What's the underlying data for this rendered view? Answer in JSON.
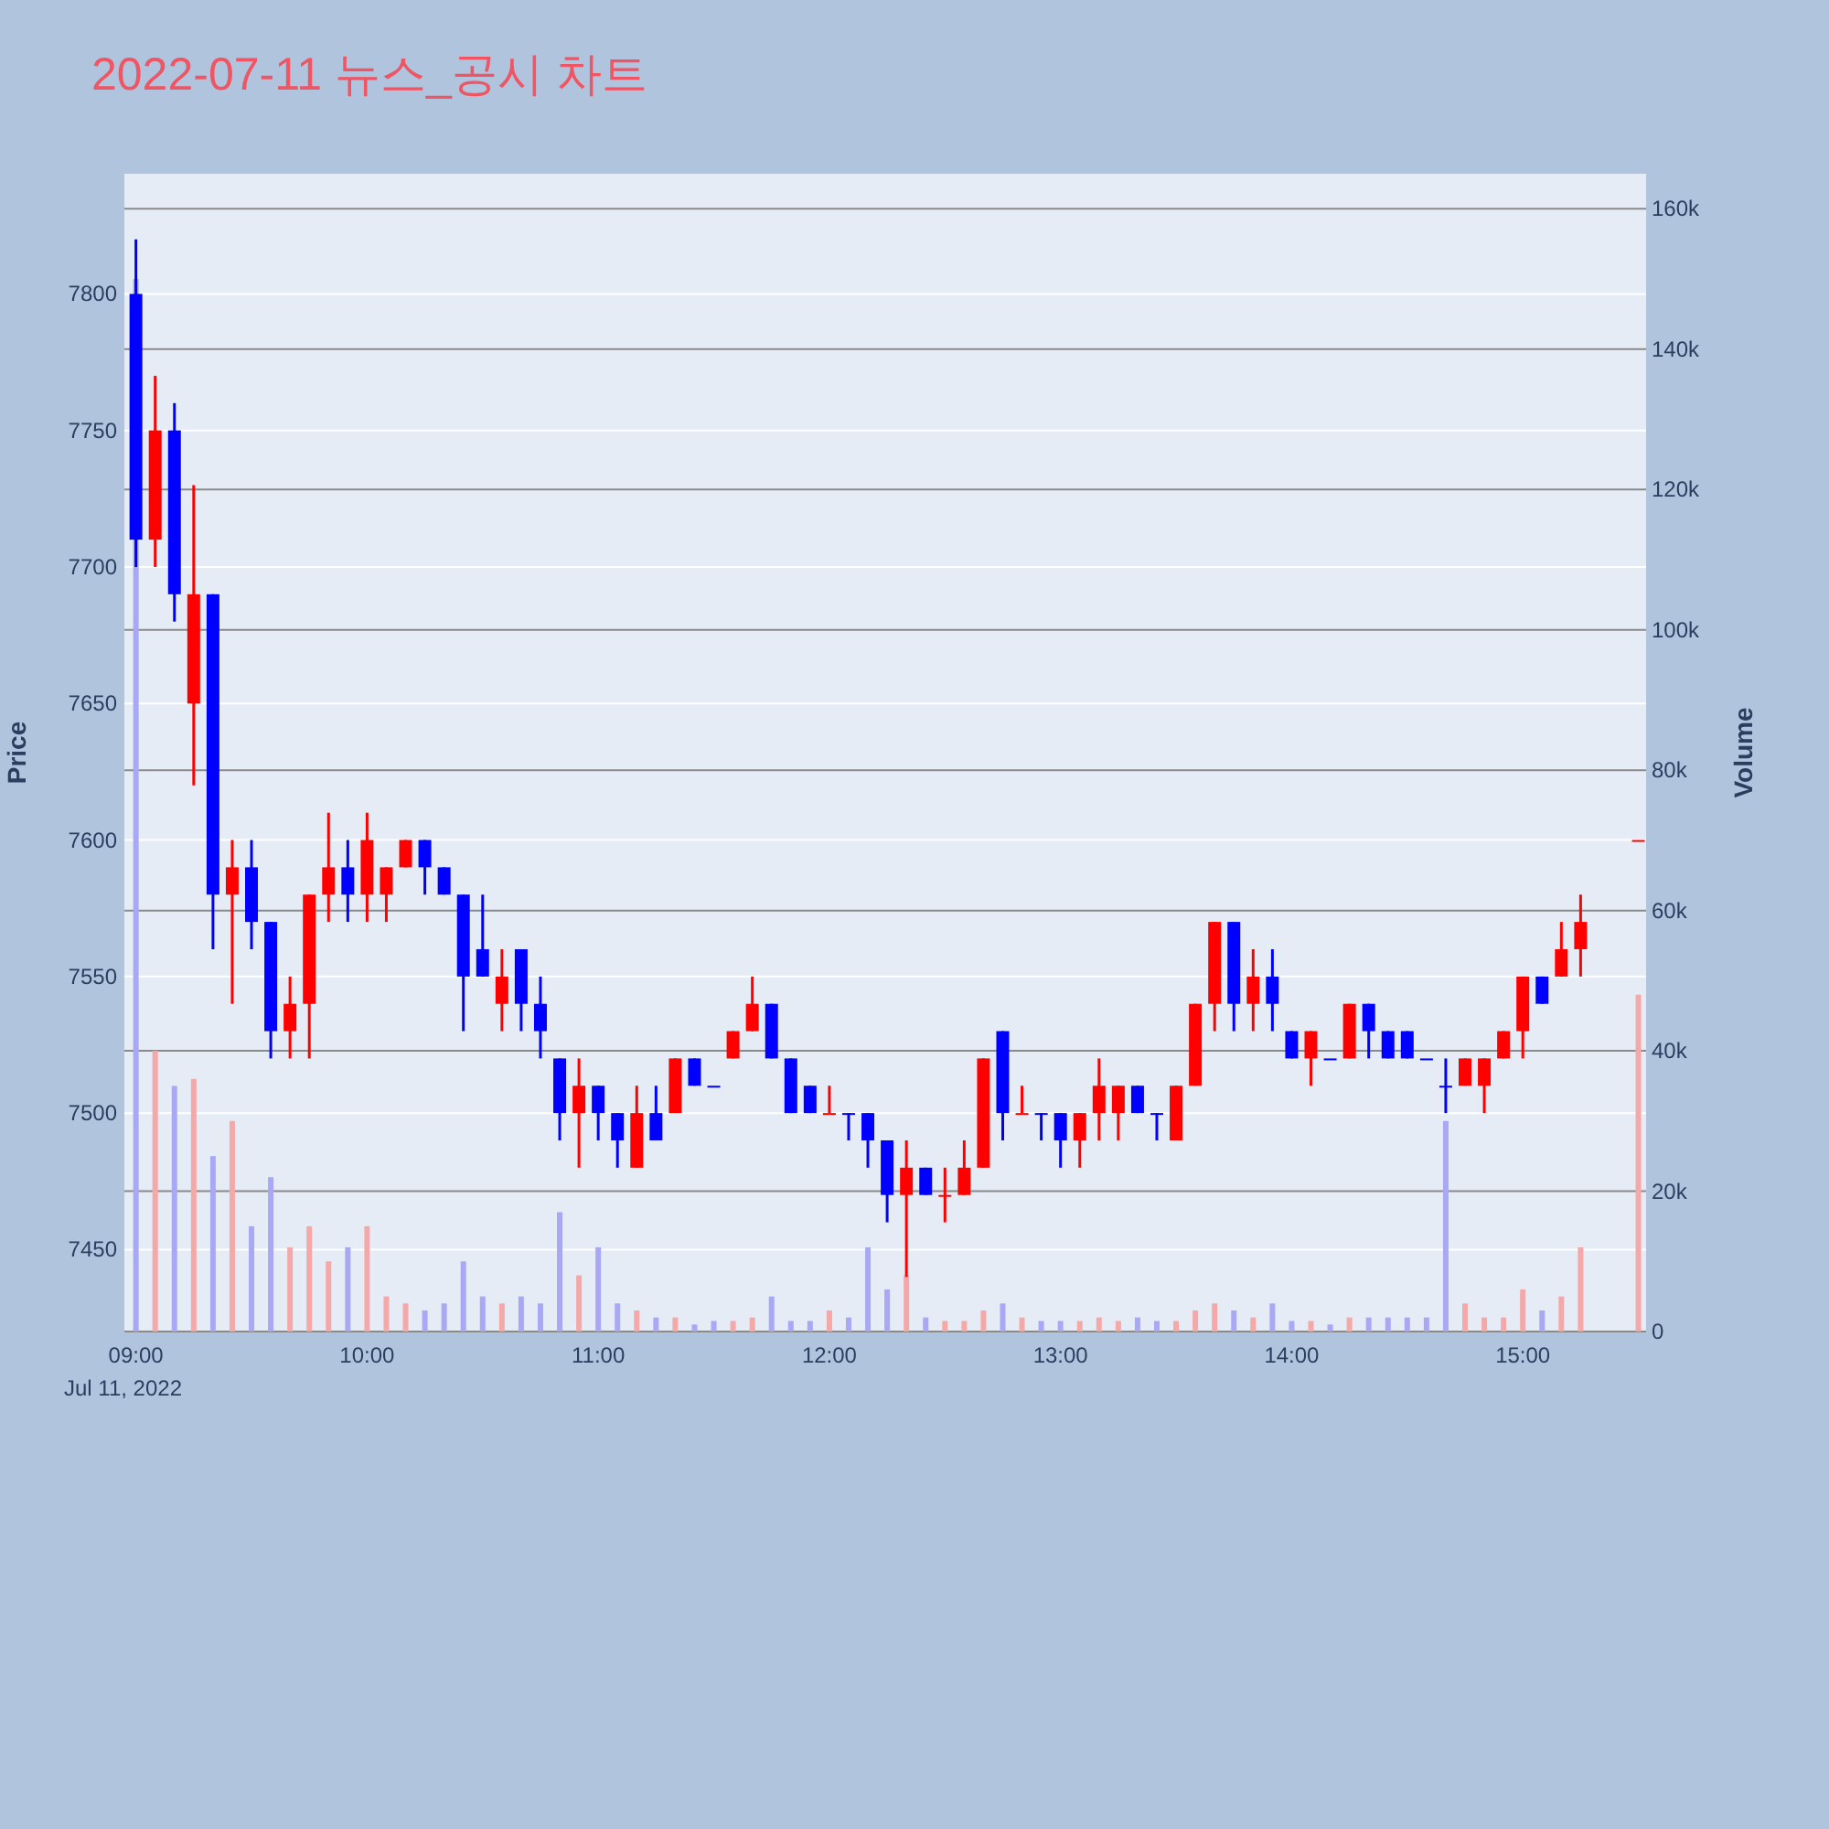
{
  "chart_data": {
    "type": "candlestick",
    "title": "2022-07-11 뉴스_공시 차트",
    "ylabel": "Price",
    "y2label": "Volume",
    "annotations": [
      "Jul 11, 2022"
    ],
    "x": [
      "2022-07-11T09:00",
      "2022-07-11T09:05",
      "2022-07-11T09:10",
      "2022-07-11T09:15",
      "2022-07-11T09:20",
      "2022-07-11T09:25",
      "2022-07-11T09:30",
      "2022-07-11T09:35",
      "2022-07-11T09:40",
      "2022-07-11T09:45",
      "2022-07-11T09:50",
      "2022-07-11T09:55",
      "2022-07-11T10:00",
      "2022-07-11T10:05",
      "2022-07-11T10:10",
      "2022-07-11T10:15",
      "2022-07-11T10:20",
      "2022-07-11T10:25",
      "2022-07-11T10:30",
      "2022-07-11T10:35",
      "2022-07-11T10:40",
      "2022-07-11T10:45",
      "2022-07-11T10:50",
      "2022-07-11T10:55",
      "2022-07-11T11:00",
      "2022-07-11T11:05",
      "2022-07-11T11:10",
      "2022-07-11T11:15",
      "2022-07-11T11:20",
      "2022-07-11T11:25",
      "2022-07-11T11:30",
      "2022-07-11T11:35",
      "2022-07-11T11:40",
      "2022-07-11T11:45",
      "2022-07-11T11:50",
      "2022-07-11T11:55",
      "2022-07-11T12:00",
      "2022-07-11T12:05",
      "2022-07-11T12:10",
      "2022-07-11T12:15",
      "2022-07-11T12:20",
      "2022-07-11T12:25",
      "2022-07-11T12:30",
      "2022-07-11T12:35",
      "2022-07-11T12:40",
      "2022-07-11T12:45",
      "2022-07-11T12:50",
      "2022-07-11T12:55",
      "2022-07-11T13:00",
      "2022-07-11T13:05",
      "2022-07-11T13:10",
      "2022-07-11T13:15",
      "2022-07-11T13:20",
      "2022-07-11T13:25",
      "2022-07-11T13:30",
      "2022-07-11T13:35",
      "2022-07-11T13:40",
      "2022-07-11T13:45",
      "2022-07-11T13:50",
      "2022-07-11T13:55",
      "2022-07-11T14:00",
      "2022-07-11T14:05",
      "2022-07-11T14:10",
      "2022-07-11T14:15",
      "2022-07-11T14:20",
      "2022-07-11T14:25",
      "2022-07-11T14:30",
      "2022-07-11T14:35",
      "2022-07-11T14:40",
      "2022-07-11T14:45",
      "2022-07-11T14:50",
      "2022-07-11T14:55",
      "2022-07-11T15:00",
      "2022-07-11T15:05",
      "2022-07-11T15:10",
      "2022-07-11T15:15",
      "2022-07-11T15:30"
    ],
    "ohlc": [
      [
        7800,
        7820,
        7700,
        7710
      ],
      [
        7710,
        7770,
        7700,
        7750
      ],
      [
        7750,
        7760,
        7680,
        7690
      ],
      [
        7650,
        7730,
        7620,
        7690
      ],
      [
        7690,
        7690,
        7560,
        7580
      ],
      [
        7580,
        7600,
        7540,
        7590
      ],
      [
        7590,
        7600,
        7560,
        7570
      ],
      [
        7570,
        7570,
        7520,
        7530
      ],
      [
        7530,
        7550,
        7520,
        7540
      ],
      [
        7540,
        7580,
        7520,
        7580
      ],
      [
        7580,
        7610,
        7570,
        7590
      ],
      [
        7590,
        7600,
        7570,
        7580
      ],
      [
        7580,
        7610,
        7570,
        7600
      ],
      [
        7580,
        7590,
        7570,
        7590
      ],
      [
        7590,
        7600,
        7590,
        7600
      ],
      [
        7600,
        7600,
        7580,
        7590
      ],
      [
        7590,
        7590,
        7580,
        7580
      ],
      [
        7580,
        7580,
        7530,
        7550
      ],
      [
        7560,
        7580,
        7550,
        7550
      ],
      [
        7540,
        7560,
        7530,
        7550
      ],
      [
        7560,
        7560,
        7530,
        7540
      ],
      [
        7540,
        7550,
        7520,
        7530
      ],
      [
        7520,
        7520,
        7490,
        7500
      ],
      [
        7500,
        7520,
        7480,
        7510
      ],
      [
        7510,
        7510,
        7490,
        7500
      ],
      [
        7500,
        7500,
        7480,
        7490
      ],
      [
        7480,
        7510,
        7480,
        7500
      ],
      [
        7500,
        7510,
        7490,
        7490
      ],
      [
        7500,
        7520,
        7500,
        7520
      ],
      [
        7520,
        7520,
        7510,
        7510
      ],
      [
        7510,
        7510,
        7510,
        7510
      ],
      [
        7520,
        7530,
        7520,
        7530
      ],
      [
        7530,
        7550,
        7530,
        7540
      ],
      [
        7540,
        7540,
        7520,
        7520
      ],
      [
        7520,
        7520,
        7500,
        7500
      ],
      [
        7510,
        7510,
        7500,
        7500
      ],
      [
        7500,
        7510,
        7500,
        7500
      ],
      [
        7500,
        7500,
        7490,
        7500
      ],
      [
        7500,
        7500,
        7480,
        7490
      ],
      [
        7490,
        7490,
        7460,
        7470
      ],
      [
        7470,
        7490,
        7440,
        7480
      ],
      [
        7480,
        7480,
        7470,
        7470
      ],
      [
        7470,
        7480,
        7460,
        7470
      ],
      [
        7470,
        7490,
        7470,
        7480
      ],
      [
        7480,
        7520,
        7480,
        7520
      ],
      [
        7530,
        7530,
        7490,
        7500
      ],
      [
        7500,
        7510,
        7500,
        7500
      ],
      [
        7500,
        7500,
        7490,
        7500
      ],
      [
        7500,
        7500,
        7480,
        7490
      ],
      [
        7490,
        7500,
        7480,
        7500
      ],
      [
        7500,
        7520,
        7490,
        7510
      ],
      [
        7500,
        7510,
        7490,
        7510
      ],
      [
        7510,
        7510,
        7500,
        7500
      ],
      [
        7500,
        7500,
        7490,
        7500
      ],
      [
        7490,
        7510,
        7490,
        7510
      ],
      [
        7510,
        7540,
        7510,
        7540
      ],
      [
        7540,
        7570,
        7530,
        7570
      ],
      [
        7570,
        7570,
        7530,
        7540
      ],
      [
        7540,
        7560,
        7530,
        7550
      ],
      [
        7550,
        7560,
        7530,
        7540
      ],
      [
        7530,
        7530,
        7520,
        7520
      ],
      [
        7520,
        7530,
        7510,
        7530
      ],
      [
        7520,
        7520,
        7520,
        7520
      ],
      [
        7520,
        7540,
        7520,
        7540
      ],
      [
        7540,
        7540,
        7520,
        7530
      ],
      [
        7530,
        7530,
        7520,
        7520
      ],
      [
        7530,
        7530,
        7520,
        7520
      ],
      [
        7520,
        7520,
        7520,
        7520
      ],
      [
        7510,
        7520,
        7500,
        7510
      ],
      [
        7510,
        7520,
        7510,
        7520
      ],
      [
        7510,
        7520,
        7500,
        7520
      ],
      [
        7520,
        7530,
        7520,
        7530
      ],
      [
        7530,
        7550,
        7520,
        7550
      ],
      [
        7550,
        7550,
        7540,
        7540
      ],
      [
        7550,
        7570,
        7550,
        7560
      ],
      [
        7560,
        7580,
        7550,
        7570
      ],
      [
        7600,
        7600,
        7600,
        7600
      ]
    ],
    "colors": [
      "#0000ff",
      "#ff0000",
      "#0000ff",
      "#ff0000",
      "#0000ff",
      "#ff0000",
      "#0000ff",
      "#0000ff",
      "#ff0000",
      "#ff0000",
      "#ff0000",
      "#0000ff",
      "#ff0000",
      "#ff0000",
      "#ff0000",
      "#0000ff",
      "#0000ff",
      "#0000ff",
      "#0000ff",
      "#ff0000",
      "#0000ff",
      "#0000ff",
      "#0000ff",
      "#ff0000",
      "#0000ff",
      "#0000ff",
      "#ff0000",
      "#0000ff",
      "#ff0000",
      "#0000ff",
      "#0000ff",
      "#ff0000",
      "#ff0000",
      "#0000ff",
      "#0000ff",
      "#0000ff",
      "#ff0000",
      "#0000ff",
      "#0000ff",
      "#0000ff",
      "#ff0000",
      "#0000ff",
      "#ff0000",
      "#ff0000",
      "#ff0000",
      "#0000ff",
      "#ff0000",
      "#0000ff",
      "#0000ff",
      "#ff0000",
      "#ff0000",
      "#ff0000",
      "#0000ff",
      "#0000ff",
      "#ff0000",
      "#ff0000",
      "#ff0000",
      "#0000ff",
      "#ff0000",
      "#0000ff",
      "#0000ff",
      "#ff0000",
      "#0000ff",
      "#ff0000",
      "#0000ff",
      "#0000ff",
      "#0000ff",
      "#0000ff",
      "#0000ff",
      "#ff0000",
      "#ff0000",
      "#ff0000",
      "#ff0000",
      "#0000ff",
      "#ff0000",
      "#ff0000",
      "#ff0000"
    ],
    "series": [
      {
        "type": "bar",
        "axis": "y2",
        "values": [
          150000,
          40000,
          35000,
          36000,
          25000,
          30000,
          15000,
          22000,
          12000,
          15000,
          10000,
          12000,
          15000,
          5000,
          4000,
          3000,
          4000,
          10000,
          5000,
          4000,
          5000,
          4000,
          17000,
          8000,
          12000,
          4000,
          3000,
          2000,
          2000,
          1000,
          1500,
          1500,
          2000,
          5000,
          1500,
          1500,
          3000,
          2000,
          12000,
          6000,
          8000,
          2000,
          1500,
          1500,
          3000,
          4000,
          2000,
          1500,
          1500,
          1500,
          2000,
          1500,
          2000,
          1500,
          1500,
          3000,
          4000,
          3000,
          2000,
          4000,
          1500,
          1500,
          1000,
          2000,
          2000,
          2000,
          2000,
          2000,
          30000,
          4000,
          2000,
          2000,
          6000,
          3000,
          5000,
          12000,
          48000
        ],
        "colors": [
          "#a8a8f4",
          "#f4a8a8",
          "#a8a8f4",
          "#f4a8a8",
          "#a8a8f4",
          "#f4a8a8",
          "#a8a8f4",
          "#a8a8f4",
          "#f4a8a8",
          "#f4a8a8",
          "#f4a8a8",
          "#a8a8f4",
          "#f4a8a8",
          "#f4a8a8",
          "#f4a8a8",
          "#a8a8f4",
          "#a8a8f4",
          "#a8a8f4",
          "#a8a8f4",
          "#f4a8a8",
          "#a8a8f4",
          "#a8a8f4",
          "#a8a8f4",
          "#f4a8a8",
          "#a8a8f4",
          "#a8a8f4",
          "#f4a8a8",
          "#a8a8f4",
          "#f4a8a8",
          "#a8a8f4",
          "#a8a8f4",
          "#f4a8a8",
          "#f4a8a8",
          "#a8a8f4",
          "#a8a8f4",
          "#a8a8f4",
          "#f4a8a8",
          "#a8a8f4",
          "#a8a8f4",
          "#a8a8f4",
          "#f4a8a8",
          "#a8a8f4",
          "#f4a8a8",
          "#f4a8a8",
          "#f4a8a8",
          "#a8a8f4",
          "#f4a8a8",
          "#a8a8f4",
          "#a8a8f4",
          "#f4a8a8",
          "#f4a8a8",
          "#f4a8a8",
          "#a8a8f4",
          "#a8a8f4",
          "#f4a8a8",
          "#f4a8a8",
          "#f4a8a8",
          "#a8a8f4",
          "#f4a8a8",
          "#a8a8f4",
          "#a8a8f4",
          "#f4a8a8",
          "#a8a8f4",
          "#f4a8a8",
          "#a8a8f4",
          "#a8a8f4",
          "#a8a8f4",
          "#a8a8f4",
          "#a8a8f4",
          "#f4a8a8",
          "#f4a8a8",
          "#f4a8a8",
          "#f4a8a8",
          "#a8a8f4",
          "#f4a8a8",
          "#f4a8a8",
          "#f4a8a8"
        ]
      }
    ],
    "xlim": [
      "2022-07-11T08:57",
      "2022-07-11T15:32"
    ],
    "xticks": [
      {
        "value": "2022-07-11T09:00",
        "label": "09:00"
      },
      {
        "value": "2022-07-11T10:00",
        "label": "10:00"
      },
      {
        "value": "2022-07-11T11:00",
        "label": "11:00"
      },
      {
        "value": "2022-07-11T12:00",
        "label": "12:00"
      },
      {
        "value": "2022-07-11T13:00",
        "label": "13:00"
      },
      {
        "value": "2022-07-11T14:00",
        "label": "14:00"
      },
      {
        "value": "2022-07-11T15:00",
        "label": "15:00"
      }
    ],
    "ylim": [
      7420,
      7844
    ],
    "yticks": [
      7450,
      7500,
      7550,
      7600,
      7650,
      7700,
      7750,
      7800
    ],
    "y2lim": [
      0,
      165000
    ],
    "y2ticks": [
      0,
      {
        "value": 20000,
        "label": "20k"
      },
      {
        "value": 40000,
        "label": "40k"
      },
      {
        "value": 60000,
        "label": "60k"
      },
      {
        "value": 80000,
        "label": "80k"
      },
      {
        "value": 100000,
        "label": "100k"
      },
      {
        "value": 120000,
        "label": "120k"
      },
      {
        "value": 140000,
        "label": "140k"
      },
      {
        "value": 160000,
        "label": "160k"
      }
    ],
    "grid": true
  }
}
